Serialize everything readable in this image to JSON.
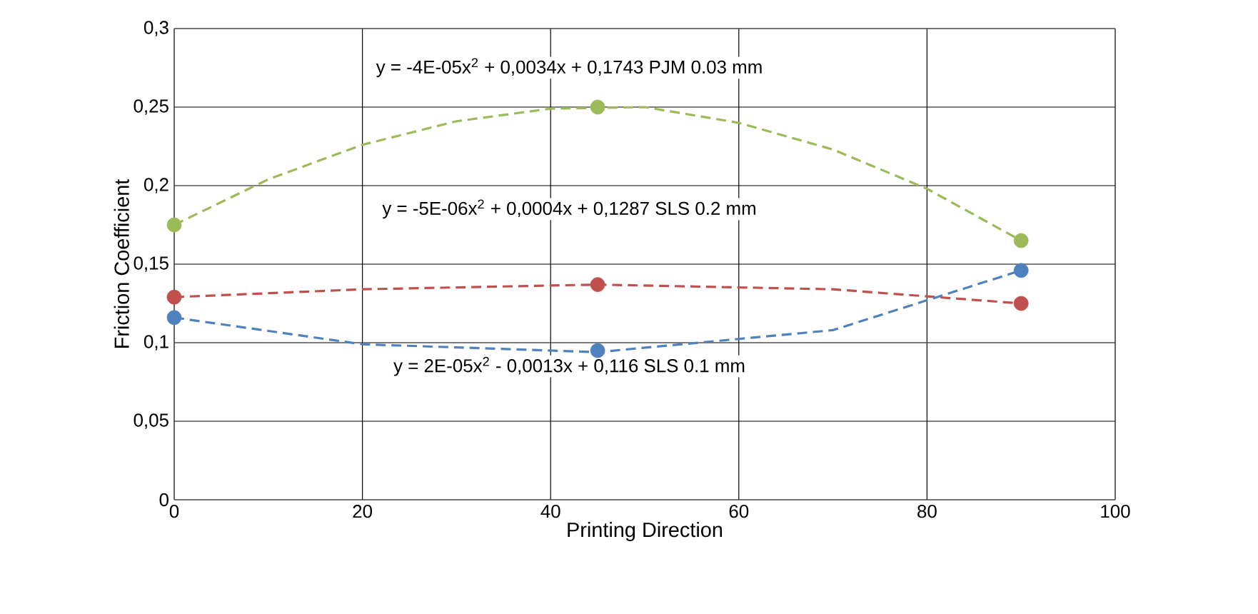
{
  "chart_data": {
    "type": "scatter",
    "xlabel": "Printing Direction",
    "ylabel": "Friction Coefficient",
    "x": [
      0,
      45,
      90
    ],
    "series": [
      {
        "type": "line",
        "color": "#9bbb59",
        "x": [
          0,
          10,
          20,
          30,
          40,
          50,
          60,
          70,
          80,
          90
        ],
        "values": [
          0.175,
          0.204,
          0.226,
          0.241,
          0.249,
          0.25,
          0.24,
          0.223,
          0.198,
          0.165
        ],
        "line_style": "dashed",
        "marker": "none"
      },
      {
        "type": "line",
        "color": "#c0504d",
        "x": [
          0,
          20,
          45,
          70,
          90
        ],
        "values": [
          0.129,
          0.134,
          0.137,
          0.134,
          0.125
        ],
        "line_style": "dashed",
        "marker": "none"
      },
      {
        "type": "line",
        "color": "#4f81bd",
        "x": [
          0,
          20,
          45,
          70,
          90
        ],
        "values": [
          0.116,
          0.099,
          0.094,
          0.108,
          0.146
        ],
        "line_style": "dashed",
        "marker": "none"
      },
      {
        "color": "#9bbb59",
        "values": [
          0.175,
          0.25,
          0.165
        ]
      },
      {
        "color": "#c0504d",
        "values": [
          0.129,
          0.137,
          0.125
        ]
      },
      {
        "color": "#4f81bd",
        "values": [
          0.116,
          0.095,
          0.146
        ]
      }
    ],
    "annotations": [
      "y = -4E-05x$^{2}$ + 0,0034x + 0,1743  PJM 0.03 mm",
      "y = -5E-06x$^{2}$ + 0,0004x + 0,1287  SLS 0.2 mm",
      "y = 2E-05x$^{2}$ - 0,0013x + 0,116  SLS 0.1 mm"
    ],
    "xlim": [
      0,
      100
    ],
    "xticks": [
      0,
      20,
      40,
      60,
      80,
      100
    ],
    "ylim": [
      0,
      0.3
    ],
    "yticks": [
      {
        "value": 0,
        "label": "0"
      },
      {
        "value": 0.05,
        "label": "0,05"
      },
      {
        "value": 0.1,
        "label": "0,1"
      },
      {
        "value": 0.15,
        "label": "0,15"
      },
      {
        "value": 0.2,
        "label": "0,2"
      },
      {
        "value": 0.25,
        "label": "0,25"
      },
      {
        "value": 0.3,
        "label": "0,3"
      }
    ],
    "grid": true,
    "marker": "circle"
  }
}
